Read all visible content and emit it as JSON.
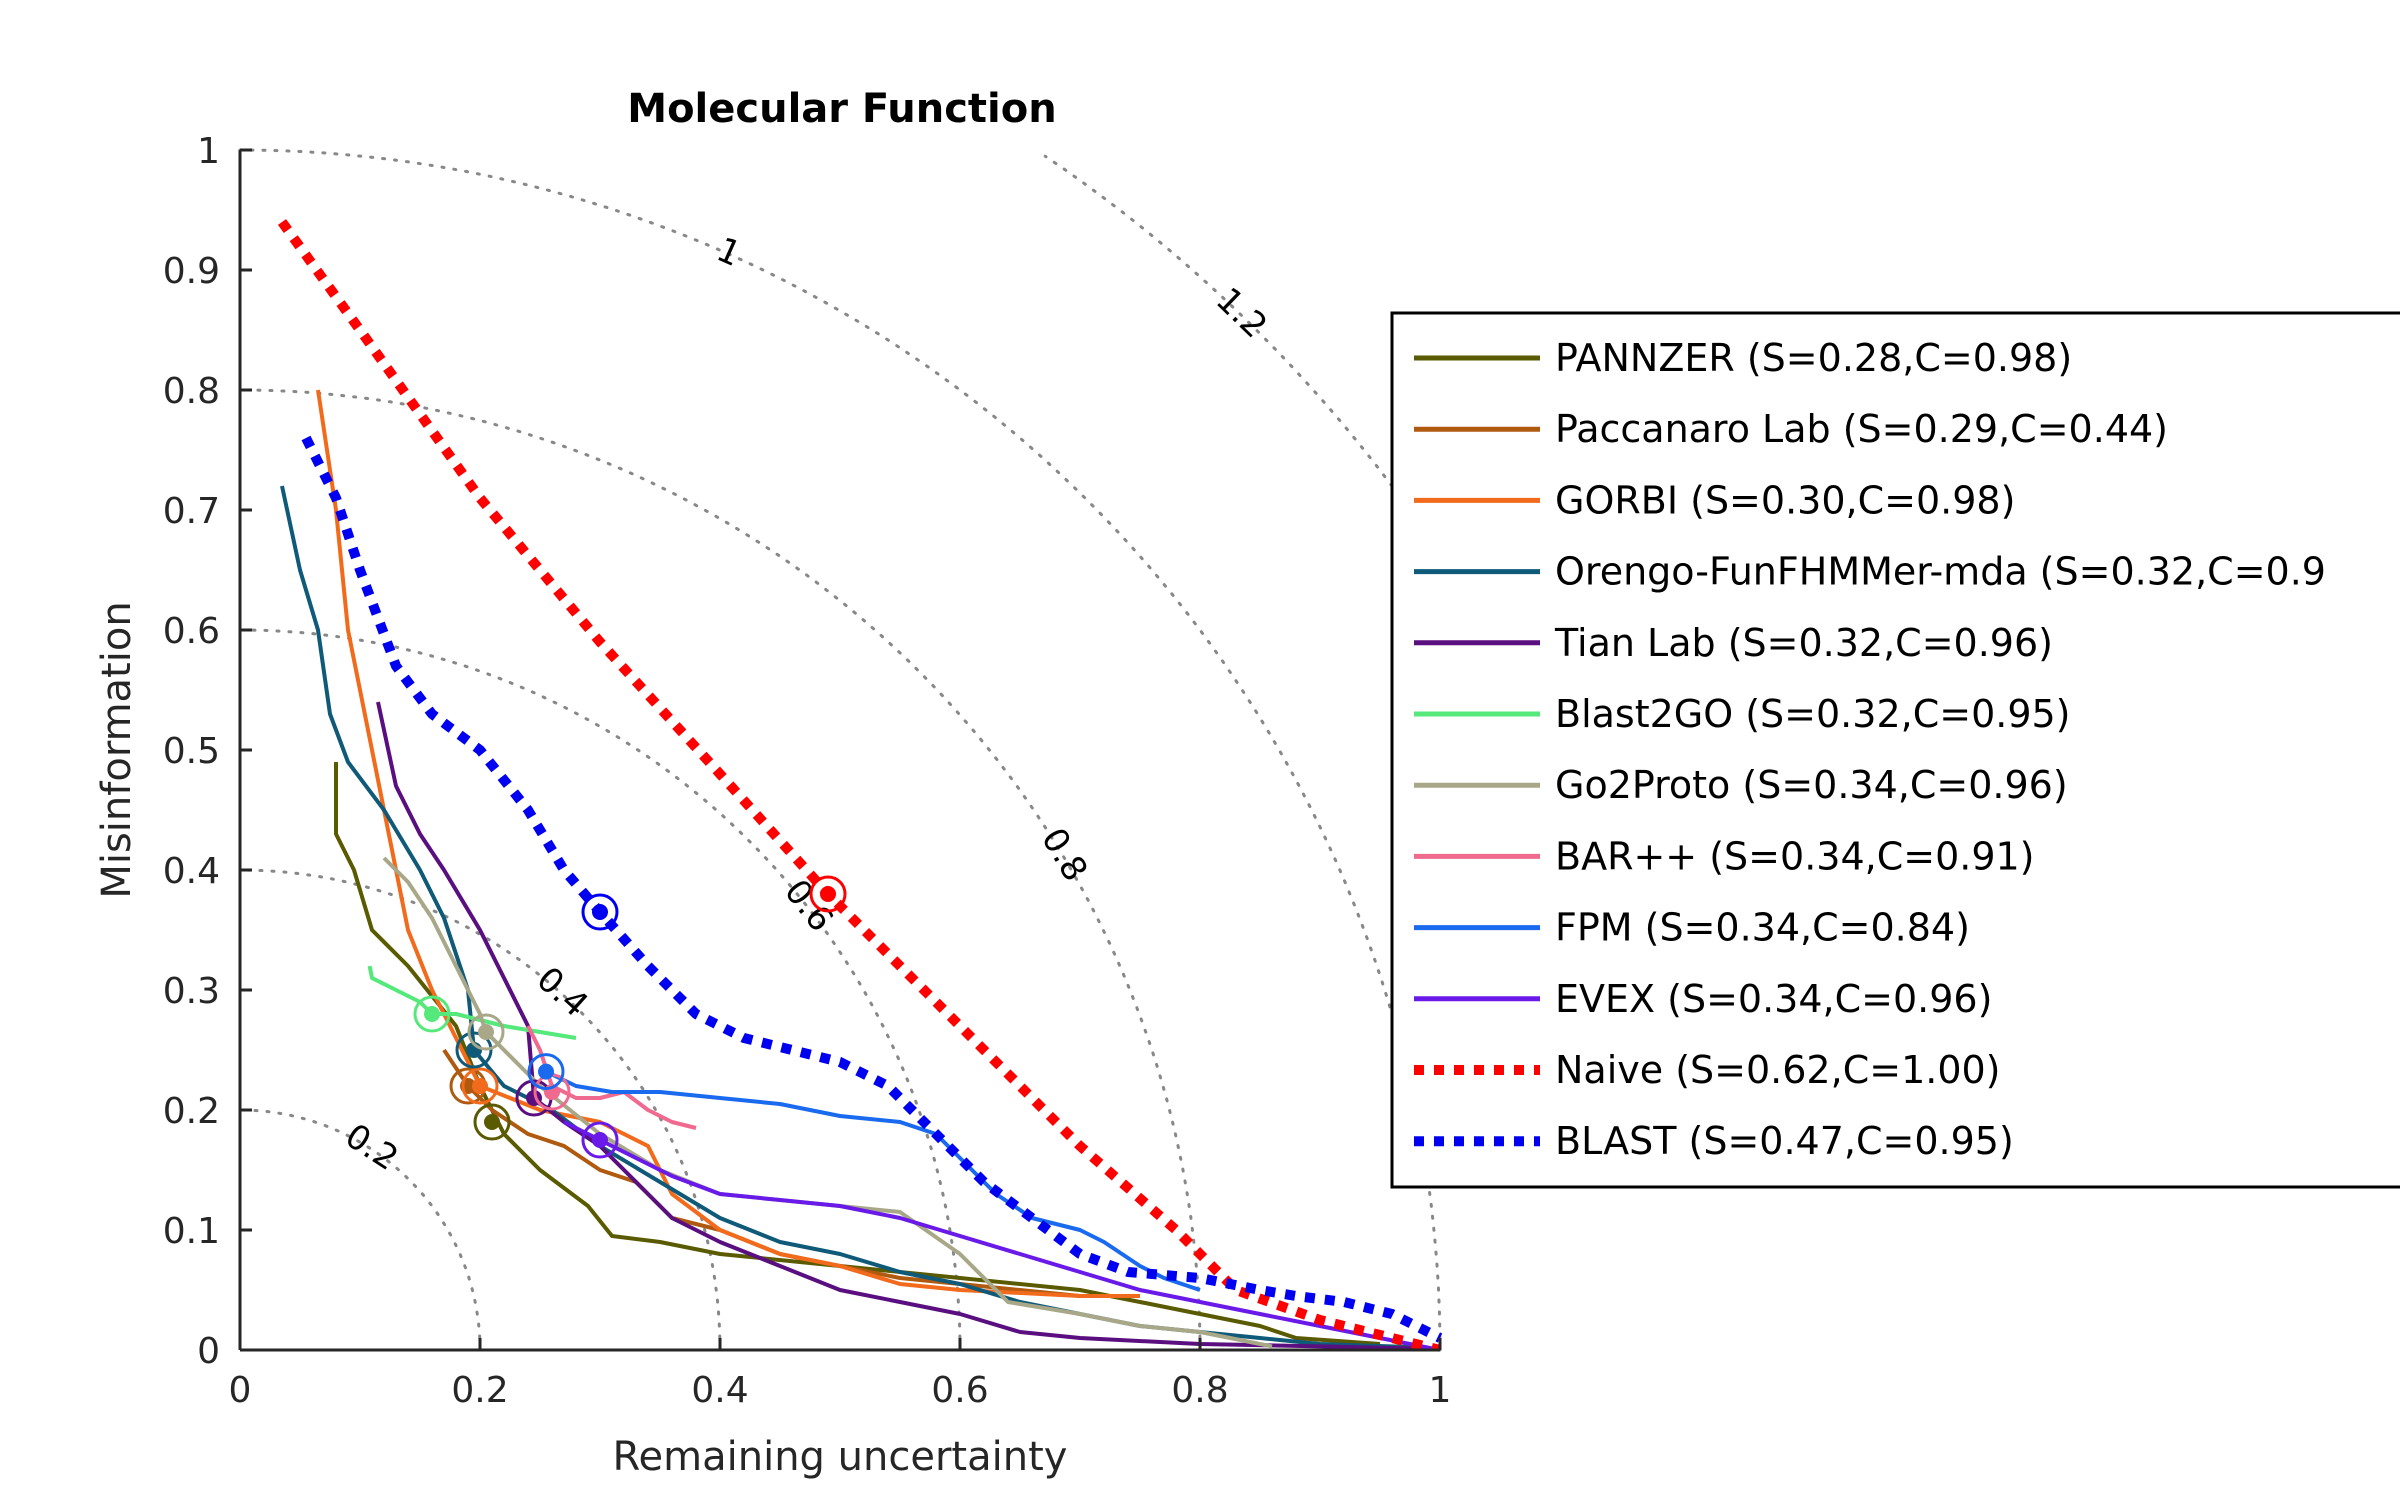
{
  "chart_data": {
    "type": "line",
    "title": "Molecular Function",
    "xlabel": "Remaining uncertainty",
    "ylabel": "Misinformation",
    "xlim": [
      0,
      1
    ],
    "ylim": [
      0,
      1
    ],
    "x_ticks": [
      "0",
      "0.2",
      "0.4",
      "0.6",
      "0.8",
      "1"
    ],
    "y_ticks": [
      "0",
      "0.1",
      "0.2",
      "0.3",
      "0.4",
      "0.5",
      "0.6",
      "0.7",
      "0.8",
      "0.9",
      "1"
    ],
    "contours": [
      {
        "value": 0.2,
        "label": "0.2"
      },
      {
        "value": 0.4,
        "label": "0.4"
      },
      {
        "value": 0.6,
        "label": "0.6"
      },
      {
        "value": 0.8,
        "label": "0.8"
      },
      {
        "value": 1.0,
        "label": "1"
      },
      {
        "value": 1.2,
        "label": "1.2"
      }
    ],
    "grid": false,
    "legend_position": "right",
    "series": [
      {
        "name": "PANNZER (S=0.28,C=0.98)",
        "color": "#5a5a00",
        "style": "solid",
        "marker": [
          0.21,
          0.19
        ],
        "points": [
          [
            0.08,
            0.49
          ],
          [
            0.08,
            0.43
          ],
          [
            0.095,
            0.4
          ],
          [
            0.11,
            0.35
          ],
          [
            0.14,
            0.32
          ],
          [
            0.18,
            0.27
          ],
          [
            0.2,
            0.22
          ],
          [
            0.22,
            0.18
          ],
          [
            0.25,
            0.15
          ],
          [
            0.29,
            0.12
          ],
          [
            0.31,
            0.095
          ],
          [
            0.35,
            0.09
          ],
          [
            0.4,
            0.08
          ],
          [
            0.5,
            0.07
          ],
          [
            0.6,
            0.06
          ],
          [
            0.7,
            0.05
          ],
          [
            0.8,
            0.03
          ],
          [
            0.85,
            0.02
          ],
          [
            0.88,
            0.01
          ],
          [
            0.95,
            0.005
          ]
        ]
      },
      {
        "name": "Paccanaro Lab (S=0.29,C=0.44)",
        "color": "#b05a10",
        "style": "solid",
        "marker": [
          0.19,
          0.22
        ],
        "points": [
          [
            0.17,
            0.25
          ],
          [
            0.19,
            0.22
          ],
          [
            0.21,
            0.2
          ],
          [
            0.24,
            0.18
          ],
          [
            0.27,
            0.17
          ],
          [
            0.3,
            0.15
          ],
          [
            0.33,
            0.14
          ],
          [
            0.36,
            0.11
          ],
          [
            0.4,
            0.1
          ],
          [
            0.45,
            0.08
          ],
          [
            0.5,
            0.07
          ],
          [
            0.55,
            0.06
          ],
          [
            0.6,
            0.055
          ],
          [
            0.65,
            0.05
          ],
          [
            0.7,
            0.045
          ]
        ]
      },
      {
        "name": "GORBI (S=0.30,C=0.98)",
        "color": "#f26a1b",
        "style": "solid",
        "marker": [
          0.2,
          0.22
        ],
        "points": [
          [
            0.065,
            0.8
          ],
          [
            0.08,
            0.7
          ],
          [
            0.09,
            0.6
          ],
          [
            0.11,
            0.5
          ],
          [
            0.13,
            0.4
          ],
          [
            0.14,
            0.35
          ],
          [
            0.16,
            0.3
          ],
          [
            0.18,
            0.26
          ],
          [
            0.2,
            0.22
          ],
          [
            0.25,
            0.2
          ],
          [
            0.3,
            0.19
          ],
          [
            0.34,
            0.17
          ],
          [
            0.36,
            0.13
          ],
          [
            0.4,
            0.1
          ],
          [
            0.45,
            0.08
          ],
          [
            0.5,
            0.07
          ],
          [
            0.55,
            0.055
          ],
          [
            0.6,
            0.05
          ],
          [
            0.7,
            0.045
          ],
          [
            0.75,
            0.045
          ]
        ]
      },
      {
        "name": "Orengo-FunFHMMer-mda (S=0.32,C=0.9",
        "color": "#0f5a78",
        "style": "solid",
        "marker": [
          0.195,
          0.25
        ],
        "points": [
          [
            0.035,
            0.72
          ],
          [
            0.05,
            0.65
          ],
          [
            0.065,
            0.6
          ],
          [
            0.075,
            0.53
          ],
          [
            0.09,
            0.49
          ],
          [
            0.12,
            0.45
          ],
          [
            0.15,
            0.4
          ],
          [
            0.17,
            0.36
          ],
          [
            0.18,
            0.33
          ],
          [
            0.19,
            0.3
          ],
          [
            0.195,
            0.25
          ],
          [
            0.22,
            0.22
          ],
          [
            0.26,
            0.2
          ],
          [
            0.3,
            0.17
          ],
          [
            0.35,
            0.14
          ],
          [
            0.4,
            0.11
          ],
          [
            0.45,
            0.09
          ],
          [
            0.5,
            0.08
          ],
          [
            0.55,
            0.065
          ],
          [
            0.6,
            0.055
          ],
          [
            0.65,
            0.04
          ],
          [
            0.7,
            0.03
          ],
          [
            0.75,
            0.02
          ],
          [
            0.8,
            0.015
          ],
          [
            0.85,
            0.01
          ],
          [
            0.9,
            0.005
          ],
          [
            0.99,
            0.002
          ]
        ]
      },
      {
        "name": "Tian Lab (S=0.32,C=0.96)",
        "color": "#5a0f80",
        "style": "solid",
        "marker": [
          0.245,
          0.21
        ],
        "points": [
          [
            0.115,
            0.54
          ],
          [
            0.13,
            0.47
          ],
          [
            0.15,
            0.43
          ],
          [
            0.17,
            0.4
          ],
          [
            0.2,
            0.35
          ],
          [
            0.22,
            0.31
          ],
          [
            0.24,
            0.27
          ],
          [
            0.245,
            0.21
          ],
          [
            0.27,
            0.19
          ],
          [
            0.3,
            0.17
          ],
          [
            0.32,
            0.15
          ],
          [
            0.34,
            0.13
          ],
          [
            0.36,
            0.11
          ],
          [
            0.4,
            0.09
          ],
          [
            0.45,
            0.07
          ],
          [
            0.5,
            0.05
          ],
          [
            0.55,
            0.04
          ],
          [
            0.6,
            0.03
          ],
          [
            0.65,
            0.015
          ],
          [
            0.7,
            0.01
          ],
          [
            0.8,
            0.005
          ],
          [
            0.9,
            0.003
          ],
          [
            0.99,
            0.001
          ]
        ]
      },
      {
        "name": "Blast2GO (S=0.32,C=0.95)",
        "color": "#55e87a",
        "style": "solid",
        "marker": [
          0.16,
          0.28
        ],
        "points": [
          [
            0.108,
            0.32
          ],
          [
            0.11,
            0.31
          ],
          [
            0.13,
            0.3
          ],
          [
            0.15,
            0.29
          ],
          [
            0.16,
            0.28
          ],
          [
            0.18,
            0.28
          ],
          [
            0.2,
            0.275
          ],
          [
            0.22,
            0.27
          ],
          [
            0.25,
            0.265
          ],
          [
            0.28,
            0.26
          ]
        ]
      },
      {
        "name": "Go2Proto (S=0.34,C=0.96)",
        "color": "#a8a888",
        "style": "solid",
        "marker": [
          0.205,
          0.265
        ],
        "points": [
          [
            0.12,
            0.41
          ],
          [
            0.14,
            0.39
          ],
          [
            0.16,
            0.36
          ],
          [
            0.18,
            0.32
          ],
          [
            0.2,
            0.28
          ],
          [
            0.205,
            0.265
          ],
          [
            0.25,
            0.22
          ],
          [
            0.3,
            0.18
          ],
          [
            0.35,
            0.15
          ],
          [
            0.4,
            0.13
          ],
          [
            0.45,
            0.125
          ],
          [
            0.5,
            0.12
          ],
          [
            0.55,
            0.115
          ],
          [
            0.6,
            0.08
          ],
          [
            0.64,
            0.04
          ],
          [
            0.7,
            0.03
          ],
          [
            0.75,
            0.02
          ],
          [
            0.8,
            0.015
          ],
          [
            0.86,
            0.003
          ]
        ]
      },
      {
        "name": "BAR++ (S=0.34,C=0.91)",
        "color": "#f06a90",
        "style": "solid",
        "marker": [
          0.26,
          0.215
        ],
        "points": [
          [
            0.24,
            0.27
          ],
          [
            0.25,
            0.25
          ],
          [
            0.26,
            0.22
          ],
          [
            0.28,
            0.21
          ],
          [
            0.3,
            0.21
          ],
          [
            0.32,
            0.215
          ],
          [
            0.34,
            0.2
          ],
          [
            0.36,
            0.19
          ],
          [
            0.38,
            0.185
          ]
        ]
      },
      {
        "name": "FPM (S=0.34,C=0.84)",
        "color": "#1a6af0",
        "style": "solid",
        "marker": [
          0.255,
          0.232
        ],
        "points": [
          [
            0.255,
            0.232
          ],
          [
            0.28,
            0.22
          ],
          [
            0.31,
            0.215
          ],
          [
            0.35,
            0.215
          ],
          [
            0.4,
            0.21
          ],
          [
            0.45,
            0.205
          ],
          [
            0.5,
            0.195
          ],
          [
            0.55,
            0.19
          ],
          [
            0.58,
            0.18
          ],
          [
            0.6,
            0.16
          ],
          [
            0.63,
            0.13
          ],
          [
            0.66,
            0.11
          ],
          [
            0.7,
            0.1
          ],
          [
            0.72,
            0.09
          ],
          [
            0.75,
            0.07
          ],
          [
            0.77,
            0.06
          ],
          [
            0.8,
            0.05
          ]
        ]
      },
      {
        "name": "EVEX (S=0.34,C=0.96)",
        "color": "#6a1ae8",
        "style": "solid",
        "marker": [
          0.3,
          0.175
        ],
        "points": [
          [
            0.27,
            0.19
          ],
          [
            0.3,
            0.175
          ],
          [
            0.33,
            0.16
          ],
          [
            0.36,
            0.145
          ],
          [
            0.4,
            0.13
          ],
          [
            0.45,
            0.125
          ],
          [
            0.5,
            0.12
          ],
          [
            0.55,
            0.11
          ],
          [
            0.6,
            0.095
          ],
          [
            0.65,
            0.08
          ],
          [
            0.7,
            0.065
          ],
          [
            0.75,
            0.05
          ],
          [
            0.8,
            0.04
          ],
          [
            0.85,
            0.03
          ],
          [
            0.9,
            0.02
          ],
          [
            0.95,
            0.01
          ],
          [
            1.0,
            0.0
          ]
        ]
      },
      {
        "name": "Naive (S=0.62,C=1.00)",
        "color": "#ff0000",
        "style": "dotted",
        "marker": [
          0.49,
          0.38
        ],
        "points": [
          [
            0.035,
            0.94
          ],
          [
            0.1,
            0.85
          ],
          [
            0.2,
            0.71
          ],
          [
            0.3,
            0.59
          ],
          [
            0.4,
            0.48
          ],
          [
            0.49,
            0.38
          ],
          [
            0.6,
            0.27
          ],
          [
            0.7,
            0.17
          ],
          [
            0.78,
            0.1
          ],
          [
            0.83,
            0.05
          ],
          [
            0.9,
            0.025
          ],
          [
            0.96,
            0.01
          ],
          [
            1.0,
            0.0
          ]
        ]
      },
      {
        "name": "BLAST (S=0.47,C=0.95)",
        "color": "#0000f0",
        "style": "dotted",
        "marker": [
          0.3,
          0.365
        ],
        "points": [
          [
            0.055,
            0.76
          ],
          [
            0.08,
            0.71
          ],
          [
            0.1,
            0.65
          ],
          [
            0.13,
            0.57
          ],
          [
            0.16,
            0.53
          ],
          [
            0.2,
            0.5
          ],
          [
            0.24,
            0.45
          ],
          [
            0.27,
            0.4
          ],
          [
            0.3,
            0.365
          ],
          [
            0.34,
            0.32
          ],
          [
            0.38,
            0.28
          ],
          [
            0.42,
            0.26
          ],
          [
            0.46,
            0.25
          ],
          [
            0.5,
            0.24
          ],
          [
            0.54,
            0.22
          ],
          [
            0.58,
            0.18
          ],
          [
            0.62,
            0.14
          ],
          [
            0.66,
            0.11
          ],
          [
            0.7,
            0.08
          ],
          [
            0.74,
            0.065
          ],
          [
            0.8,
            0.06
          ],
          [
            0.85,
            0.05
          ],
          [
            0.88,
            0.045
          ],
          [
            0.92,
            0.04
          ],
          [
            0.96,
            0.03
          ],
          [
            1.0,
            0.01
          ]
        ]
      }
    ]
  }
}
